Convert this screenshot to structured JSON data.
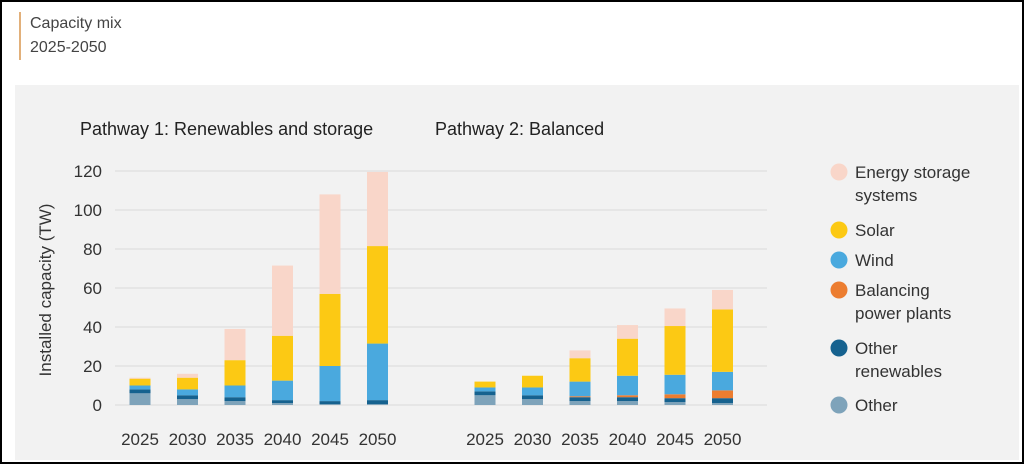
{
  "header": {
    "title": "Capacity mix",
    "subtitle": "2025-2050"
  },
  "colors": {
    "storage": "#f9d6c9",
    "solar": "#fcc914",
    "wind": "#4aa9de",
    "balancing": "#ec7d30",
    "other_renewables": "#16628f",
    "other": "#7ea3ba",
    "grid": "#d9d9d9",
    "text": "#333333"
  },
  "chart_data": {
    "type": "bar",
    "stacked": true,
    "ylabel": "Installed capacity (TW)",
    "ylim": [
      0,
      120
    ],
    "yticks": [
      0,
      20,
      40,
      60,
      80,
      100,
      120
    ],
    "grid": true,
    "legend_position": "right",
    "legend": [
      {
        "key": "storage",
        "label": [
          "Energy storage",
          "systems"
        ]
      },
      {
        "key": "solar",
        "label": [
          "Solar"
        ]
      },
      {
        "key": "wind",
        "label": [
          "Wind"
        ]
      },
      {
        "key": "balancing",
        "label": [
          "Balancing",
          "power plants"
        ]
      },
      {
        "key": "other_renewables",
        "label": [
          "Other",
          "renewables"
        ]
      },
      {
        "key": "other",
        "label": [
          "Other"
        ]
      }
    ],
    "panels": [
      {
        "title": "Pathway 1: Renewables and storage",
        "categories": [
          "2025",
          "2030",
          "2035",
          "2040",
          "2045",
          "2050"
        ],
        "series": [
          {
            "key": "other",
            "name": "Other",
            "values": [
              6,
              3,
              2,
              1,
              0.5,
              0.5
            ]
          },
          {
            "key": "other_renewables",
            "name": "Other renewables",
            "values": [
              2,
              2,
              2,
              1.5,
              1.5,
              2
            ]
          },
          {
            "key": "balancing",
            "name": "Balancing power plants",
            "values": [
              0,
              0,
              0,
              0,
              0,
              0
            ]
          },
          {
            "key": "wind",
            "name": "Wind",
            "values": [
              2,
              3,
              6,
              10,
              18,
              29
            ]
          },
          {
            "key": "solar",
            "name": "Solar",
            "values": [
              3.5,
              6,
              13,
              23,
              37,
              50
            ]
          },
          {
            "key": "storage",
            "name": "Energy storage systems",
            "values": [
              0.5,
              2,
              16,
              36,
              51,
              38
            ]
          }
        ]
      },
      {
        "title": "Pathway 2: Balanced",
        "categories": [
          "2025",
          "2030",
          "2035",
          "2040",
          "2045",
          "2050"
        ],
        "series": [
          {
            "key": "other",
            "name": "Other",
            "values": [
              5,
              3,
              2,
              2,
              1.5,
              1
            ]
          },
          {
            "key": "other_renewables",
            "name": "Other renewables",
            "values": [
              2,
              2,
              2,
              2,
              2,
              2.5
            ]
          },
          {
            "key": "balancing",
            "name": "Balancing power plants",
            "values": [
              0,
              0,
              0.5,
              1,
              2,
              4
            ]
          },
          {
            "key": "wind",
            "name": "Wind",
            "values": [
              2,
              4,
              7.5,
              10,
              10,
              9.5
            ]
          },
          {
            "key": "solar",
            "name": "Solar",
            "values": [
              3,
              6,
              12,
              19,
              25,
              32
            ]
          },
          {
            "key": "storage",
            "name": "Energy storage systems",
            "values": [
              0,
              0,
              4,
              7,
              9,
              10
            ]
          }
        ]
      }
    ]
  }
}
